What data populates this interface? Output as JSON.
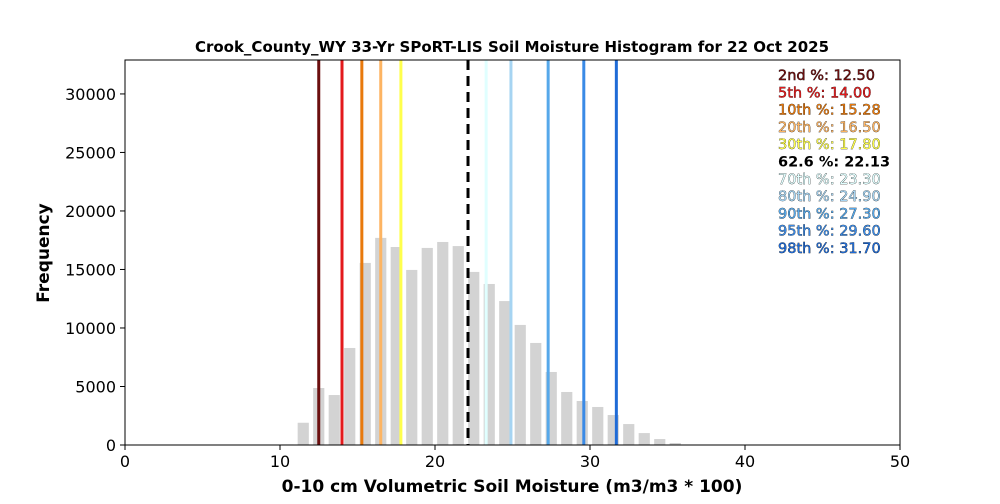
{
  "chart_data": {
    "type": "bar",
    "title": "Crook_County_WY 33-Yr SPoRT-LIS Soil Moisture Histogram for 22 Oct 2025",
    "xlabel": "0-10 cm Volumetric Soil Moisture (m3/m3 * 100)",
    "ylabel": "Frequency",
    "xlim": [
      0,
      50
    ],
    "ylim": [
      0,
      32900
    ],
    "xticks": [
      0,
      10,
      20,
      30,
      40,
      50
    ],
    "yticks": [
      0,
      5000,
      10000,
      15000,
      20000,
      25000,
      30000
    ],
    "grid": false,
    "bar_color": "#d3d3d3",
    "bins": [
      10.5,
      11.5,
      12.5,
      13.5,
      14.5,
      15.5,
      16.5,
      17.5,
      18.5,
      19.5,
      20.5,
      21.5,
      22.5,
      23.5,
      24.5,
      25.5,
      26.5,
      27.5,
      28.5,
      29.5,
      30.5,
      31.5,
      32.5,
      33.5,
      34.5,
      35.5
    ],
    "values": [
      50,
      1900,
      4870,
      4270,
      8290,
      15560,
      17700,
      16920,
      14960,
      16840,
      17350,
      17000,
      14790,
      13760,
      12300,
      10260,
      8720,
      6240,
      4530,
      3760,
      3250,
      2560,
      1790,
      1020,
      510,
      170
    ],
    "percentile_lines": [
      {
        "label": "2nd %: 12.50",
        "value": 12.5,
        "color": "#6b0f0f"
      },
      {
        "label": "5th %: 14.00",
        "value": 14.0,
        "color": "#e31a1c"
      },
      {
        "label": "10th %: 15.28",
        "value": 15.28,
        "color": "#e8790c"
      },
      {
        "label": "20th %: 16.50",
        "value": 16.5,
        "color": "#fdb462"
      },
      {
        "label": "30th %: 17.80",
        "value": 17.8,
        "color": "#ffff4c"
      },
      {
        "label": "62.6 %: 22.13",
        "value": 22.13,
        "color": "#000000",
        "dashed": true
      },
      {
        "label": "70th %: 23.30",
        "value": 23.3,
        "color": "#e0ffff"
      },
      {
        "label": "80th %: 24.90",
        "value": 24.9,
        "color": "#a6d4f2"
      },
      {
        "label": "90th %: 27.30",
        "value": 27.3,
        "color": "#56a8ea"
      },
      {
        "label": "95th %: 29.60",
        "value": 29.6,
        "color": "#3a8ae6"
      },
      {
        "label": "98th %: 31.70",
        "value": 31.7,
        "color": "#1f6bd6"
      }
    ],
    "legend_position": "top-right"
  }
}
